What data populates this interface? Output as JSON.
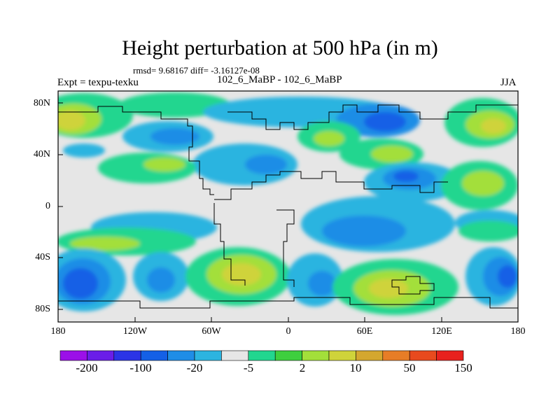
{
  "title": "Height perturbation at 500 hPa (in m)",
  "stats": "rmsd= 9.68167 diff= -3.16127e-08",
  "experiment": "Expt = texpu-texku",
  "center_label": "102_6_MaBP - 102_6_MaBP",
  "season": "JJA",
  "lat_labels": [
    "80N",
    "40N",
    "0",
    "40S",
    "80S"
  ],
  "lon_labels": [
    "180",
    "120W",
    "60W",
    "0",
    "60E",
    "120E",
    "180"
  ],
  "colorbar": {
    "colors": [
      "#9b10e8",
      "#6a1ee8",
      "#2b34e6",
      "#1460e6",
      "#1f8de6",
      "#2cb4e0",
      "#e6e6e6",
      "#22d68f",
      "#3ecf3e",
      "#a3df3a",
      "#cfd33a",
      "#d4a72f",
      "#e77d26",
      "#e84a1e",
      "#e8211e"
    ],
    "labels": [
      "-200",
      "-100",
      "-20",
      "-5",
      "2",
      "10",
      "50",
      "150"
    ]
  },
  "colors": {
    "neutral": "#e6e6e6",
    "c_neg5": "#2cb4e0",
    "c_neg20": "#1f8de6",
    "c_neg100": "#1460e6",
    "c_pos2": "#22d68f",
    "c_pos10": "#3ecf3e",
    "c_pos50": "#a3df3a",
    "c_pos150": "#cfd33a"
  }
}
